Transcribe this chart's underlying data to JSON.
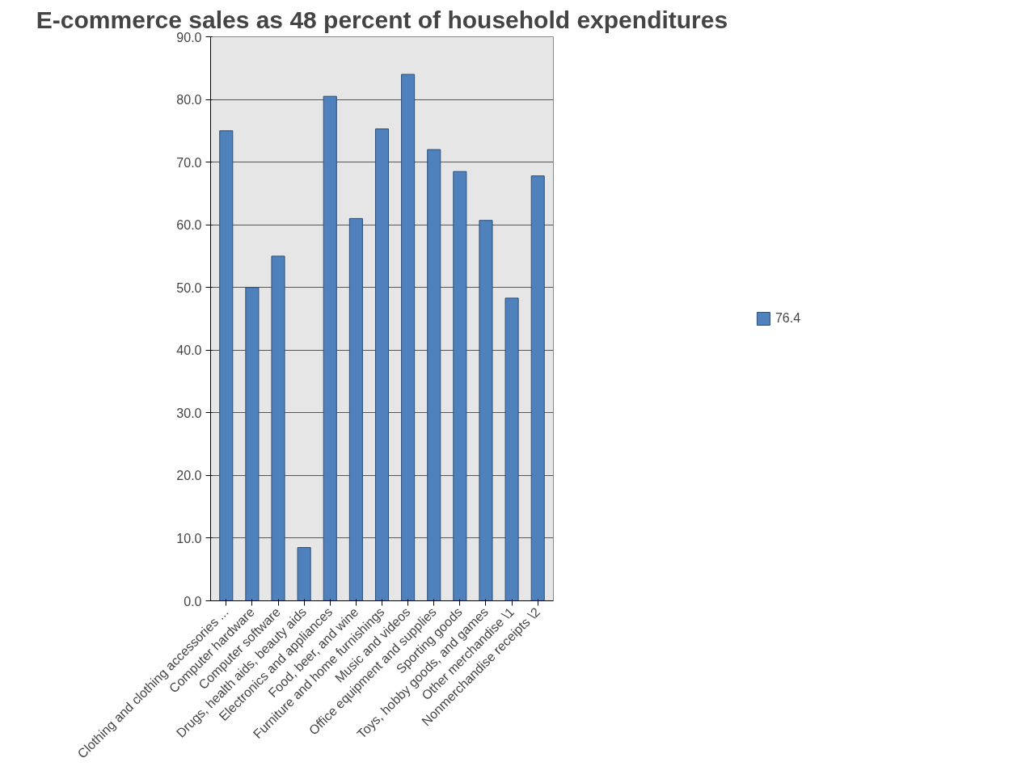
{
  "chart_data": {
    "type": "bar",
    "title": "E-commerce sales as 48 percent of household expenditures",
    "categories": [
      "Clothing and clothing accessories ...",
      "Computer hardware",
      "Computer software",
      "Drugs, health aids, beauty aids",
      "Electronics and appliances",
      "Food, beer, and wine",
      "Furniture and home furnishings",
      "Music and videos",
      "Office equipment and supplies",
      "Sporting goods",
      "Toys, hobby goods, and games",
      "Other merchandise \\1",
      "Nonmerchandise receipts \\2"
    ],
    "series": [
      {
        "name": "76.4",
        "color": "#4f81bd",
        "values": [
          75,
          50,
          55,
          8.5,
          80.5,
          61,
          75.3,
          84,
          72,
          68.5,
          60.7,
          48.3,
          67.8
        ]
      }
    ],
    "ylim": [
      0,
      90
    ],
    "yticks": [
      {
        "value": 0,
        "label": "0.0"
      },
      {
        "value": 10,
        "label": "10.0"
      },
      {
        "value": 20,
        "label": "20.0"
      },
      {
        "value": 30,
        "label": "30.0"
      },
      {
        "value": 40,
        "label": "40.0"
      },
      {
        "value": 50,
        "label": "50.0"
      },
      {
        "value": 60,
        "label": "60.0"
      },
      {
        "value": 70,
        "label": "70.0"
      },
      {
        "value": 80,
        "label": "80.0"
      },
      {
        "value": 90,
        "label": "90.0"
      }
    ],
    "grid": "y",
    "legend": "right"
  }
}
